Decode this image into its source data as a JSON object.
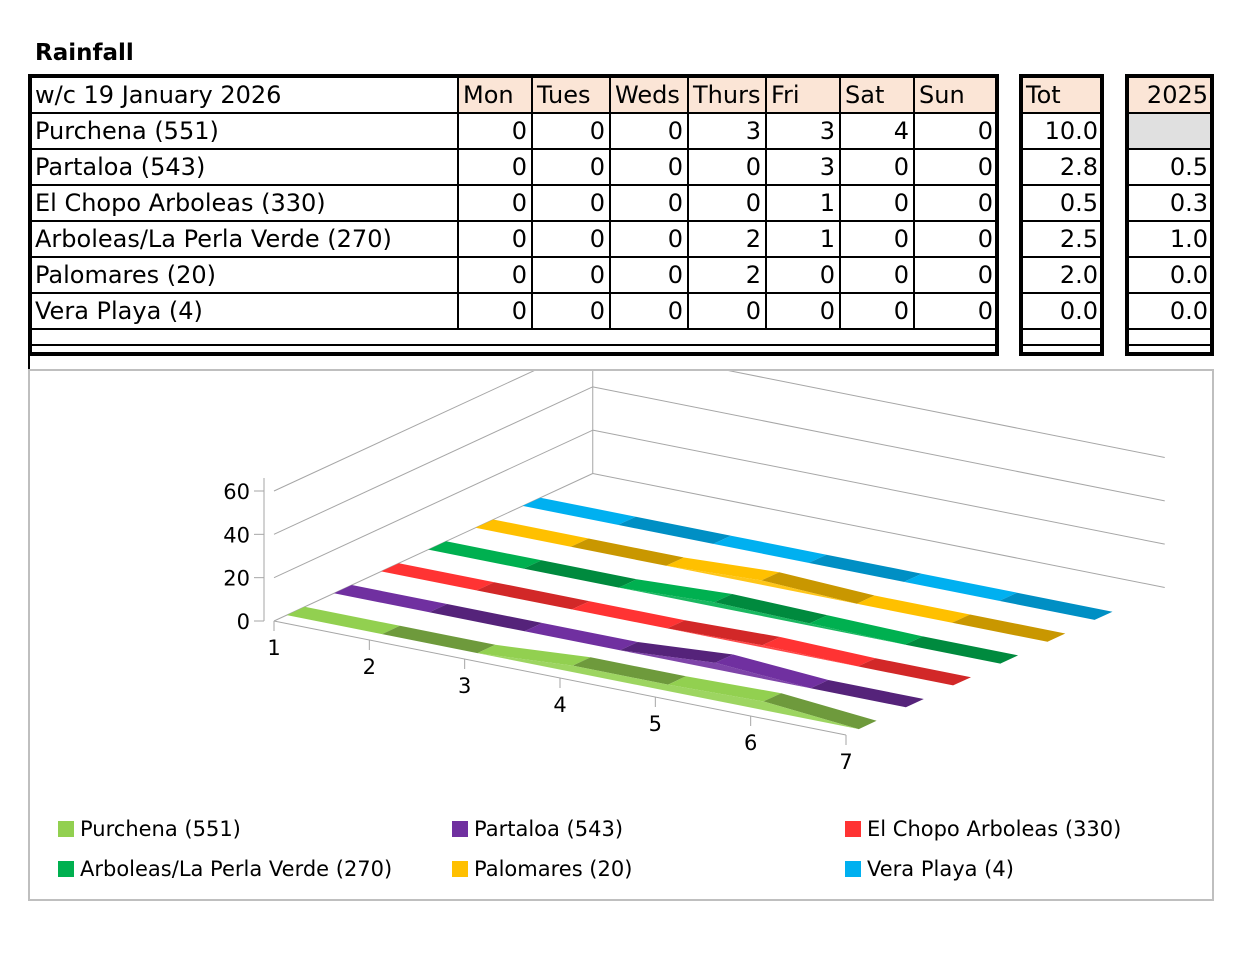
{
  "title": "Rainfall",
  "table": {
    "week_label": "w/c 19 January 2026",
    "days": [
      "Mon",
      "Tues",
      "Weds",
      "Thurs",
      "Fri",
      "Sat",
      "Sun"
    ],
    "tot_label": "Tot",
    "year_label": "2025",
    "rows": [
      {
        "name": "Purchena (551)",
        "values": [
          "0",
          "0",
          "0",
          "3",
          "3",
          "4",
          "0"
        ],
        "tot": "10.0",
        "prev": ""
      },
      {
        "name": "Partaloa (543)",
        "values": [
          "0",
          "0",
          "0",
          "0",
          "3",
          "0",
          "0"
        ],
        "tot": "2.8",
        "prev": "0.5"
      },
      {
        "name": "El Chopo Arboleas (330)",
        "values": [
          "0",
          "0",
          "0",
          "0",
          "1",
          "0",
          "0"
        ],
        "tot": "0.5",
        "prev": "0.3"
      },
      {
        "name": "Arboleas/La Perla Verde (270)",
        "values": [
          "0",
          "0",
          "0",
          "2",
          "1",
          "0",
          "0"
        ],
        "tot": "2.5",
        "prev": "1.0"
      },
      {
        "name": "Palomares (20)",
        "values": [
          "0",
          "0",
          "0",
          "2",
          "0",
          "0",
          "0"
        ],
        "tot": "2.0",
        "prev": "0.0"
      },
      {
        "name": "Vera Playa (4)",
        "values": [
          "0",
          "0",
          "0",
          "0",
          "0",
          "0",
          "0"
        ],
        "tot": "0.0",
        "prev": "0.0"
      }
    ]
  },
  "chart_data": {
    "type": "area",
    "categories": [
      "1",
      "2",
      "3",
      "4",
      "5",
      "6",
      "7"
    ],
    "y_ticks": [
      "0",
      "20",
      "40",
      "60"
    ],
    "ylim": [
      0,
      60
    ],
    "grid": true,
    "legend_position": "bottom",
    "series": [
      {
        "name": "Purchena (551)",
        "values": [
          0,
          0,
          0,
          3,
          3,
          4,
          0
        ],
        "color": "#92d050",
        "dark": "#6e9a3c"
      },
      {
        "name": "Partaloa (543)",
        "values": [
          0,
          0,
          0,
          0,
          3,
          0,
          0
        ],
        "color": "#7030a0",
        "dark": "#55237a"
      },
      {
        "name": "El Chopo Arboleas (330)",
        "values": [
          0,
          0,
          0,
          0,
          1,
          0,
          0
        ],
        "color": "#ff3333",
        "dark": "#d22828"
      },
      {
        "name": "Arboleas/La Perla Verde (270)",
        "values": [
          0,
          0,
          0,
          2,
          1,
          0,
          0
        ],
        "color": "#00b050",
        "dark": "#008a3e"
      },
      {
        "name": "Palomares (20)",
        "values": [
          0,
          0,
          0,
          2,
          0,
          0,
          0
        ],
        "color": "#ffc000",
        "dark": "#c99700"
      },
      {
        "name": "Vera Playa (4)",
        "values": [
          0,
          0,
          0,
          0,
          0,
          0,
          0
        ],
        "color": "#00b0f0",
        "dark": "#008fc4"
      }
    ]
  }
}
